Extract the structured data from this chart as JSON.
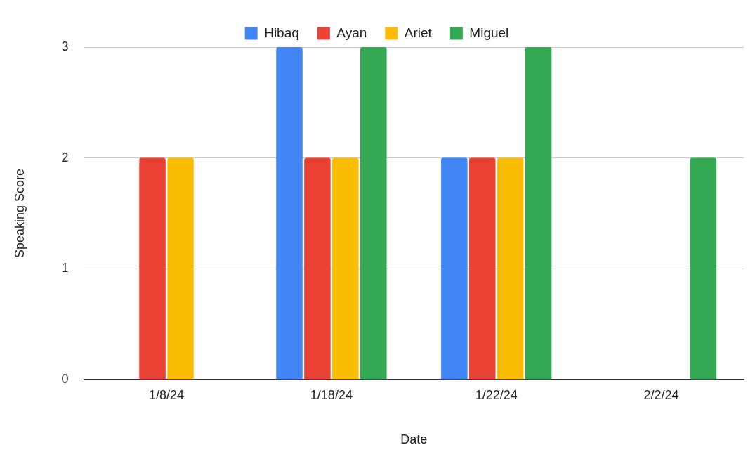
{
  "chart_data": {
    "type": "bar",
    "xlabel": "Date",
    "ylabel": "Speaking Score",
    "categories": [
      "1/8/24",
      "1/18/24",
      "1/22/24",
      "2/2/24"
    ],
    "series": [
      {
        "name": "Hibaq",
        "color": "#4285f4",
        "values": [
          null,
          3,
          2,
          null
        ]
      },
      {
        "name": "Ayan",
        "color": "#ea4335",
        "values": [
          2,
          2,
          2,
          null
        ]
      },
      {
        "name": "Ariet",
        "color": "#fbbc04",
        "values": [
          2,
          2,
          2,
          null
        ]
      },
      {
        "name": "Miguel",
        "color": "#34a853",
        "values": [
          null,
          3,
          3,
          2
        ]
      }
    ],
    "ylim": [
      0,
      3
    ],
    "yticks": [
      0,
      1,
      2,
      3
    ],
    "grid": "y",
    "legend": "top"
  }
}
